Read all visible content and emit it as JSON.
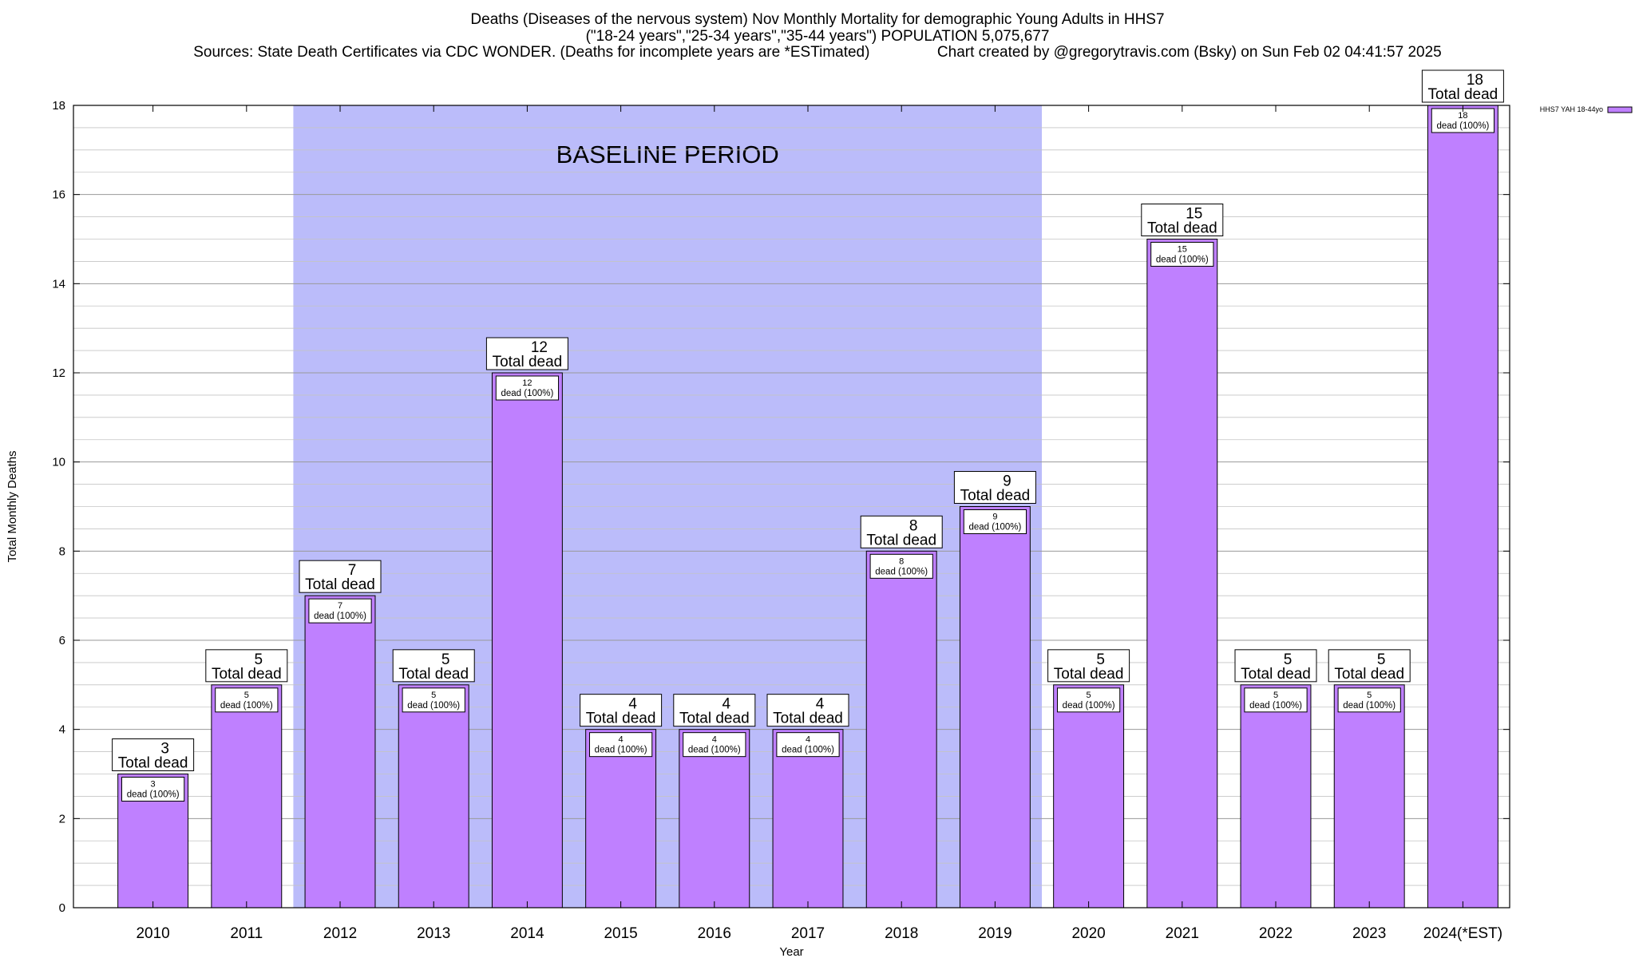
{
  "chart_data": {
    "type": "bar",
    "title_lines": [
      "Deaths (Diseases of the nervous system) Nov Monthly Mortality for demographic Young Adults in HHS7",
      "(\"18-24 years\",\"25-34 years\",\"35-44 years\") POPULATION 5,075,677",
      "Sources: State Death Certificates via CDC WONDER. (Deaths for incomplete years are *ESTimated)                Chart created by @gregorytravis.com (Bsky) on Sun Feb 02 04:41:57 2025"
    ],
    "xlabel": "Year",
    "ylabel": "Total Monthly Deaths",
    "ylim": [
      0,
      18
    ],
    "yticks": [
      0,
      2,
      4,
      6,
      8,
      10,
      12,
      14,
      16,
      18
    ],
    "grid": "horizontal",
    "legend_position": "top-right",
    "categories": [
      "2010",
      "2011",
      "2012",
      "2013",
      "2014",
      "2015",
      "2016",
      "2017",
      "2018",
      "2019",
      "2020",
      "2021",
      "2022",
      "2023",
      "2024(*EST)"
    ],
    "series": [
      {
        "name": "HHS7 YAH 18-44yo",
        "color": "#bf80ff",
        "values": [
          3,
          5,
          7,
          5,
          12,
          4,
          4,
          4,
          8,
          9,
          5,
          15,
          5,
          5,
          18
        ]
      }
    ],
    "total_label": "Total dead",
    "inner_label": "dead (100%)",
    "baseline": {
      "label": "BASELINE PERIOD",
      "start": "2012",
      "end": "2019",
      "color": "#bbbcfa"
    }
  }
}
